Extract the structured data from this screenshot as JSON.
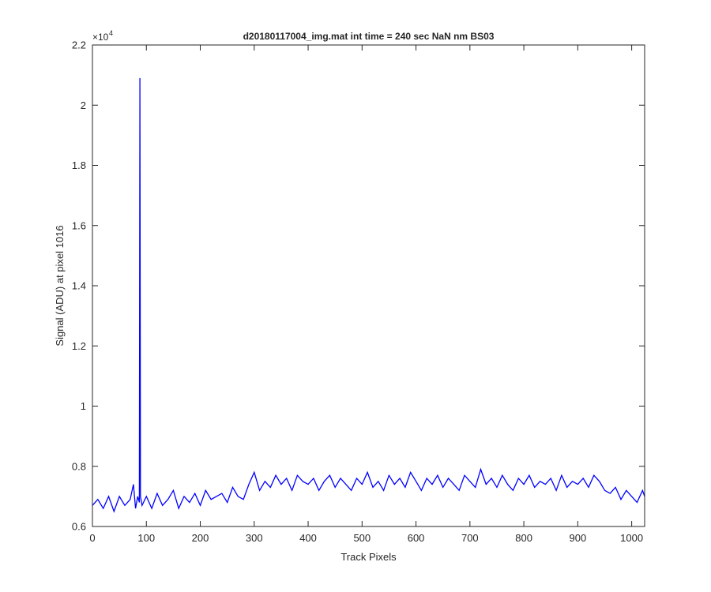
{
  "chart_data": {
    "type": "line",
    "title": "d20180117004_img.mat int time = 240 sec  NaN nm BS03",
    "xlabel": "Track Pixels",
    "ylabel": "Signal (ADU) at pixel 1016",
    "xlim": [
      0,
      1024
    ],
    "ylim": [
      0.6,
      2.2
    ],
    "y_exponent_label": "×10",
    "y_exponent_power": "4",
    "xticks": [
      0,
      100,
      200,
      300,
      400,
      500,
      600,
      700,
      800,
      900,
      1000
    ],
    "xtick_labels": [
      "0",
      "100",
      "200",
      "300",
      "400",
      "500",
      "600",
      "700",
      "800",
      "900",
      "1000"
    ],
    "yticks": [
      0.6,
      0.8,
      1.0,
      1.2,
      1.4,
      1.6,
      1.8,
      2.0,
      2.2
    ],
    "ytick_labels": [
      "0.6",
      "0.8",
      "1",
      "1.2",
      "1.4",
      "1.6",
      "1.8",
      "2",
      "2.2"
    ],
    "grid": false,
    "line_color": "#0000ff",
    "series": [
      {
        "x": [
          0,
          10,
          20,
          30,
          40,
          50,
          60,
          70,
          76,
          80,
          84,
          87,
          88,
          89,
          92,
          100,
          110,
          120,
          130,
          140,
          150,
          160,
          170,
          180,
          190,
          200,
          210,
          220,
          230,
          240,
          250,
          260,
          270,
          280,
          290,
          300,
          310,
          320,
          330,
          340,
          350,
          360,
          370,
          380,
          390,
          400,
          410,
          420,
          430,
          440,
          450,
          460,
          470,
          480,
          490,
          500,
          510,
          520,
          530,
          540,
          550,
          560,
          570,
          580,
          590,
          600,
          610,
          620,
          630,
          640,
          650,
          660,
          670,
          680,
          690,
          700,
          710,
          720,
          730,
          740,
          750,
          760,
          770,
          780,
          790,
          800,
          810,
          820,
          830,
          840,
          850,
          860,
          870,
          880,
          890,
          900,
          910,
          920,
          930,
          940,
          950,
          960,
          970,
          980,
          990,
          1000,
          1010,
          1020,
          1024
        ],
        "y": [
          0.67,
          0.69,
          0.66,
          0.7,
          0.65,
          0.7,
          0.67,
          0.69,
          0.74,
          0.66,
          0.7,
          0.68,
          2.09,
          0.7,
          0.67,
          0.7,
          0.66,
          0.71,
          0.67,
          0.69,
          0.72,
          0.66,
          0.7,
          0.68,
          0.71,
          0.67,
          0.72,
          0.69,
          0.7,
          0.71,
          0.68,
          0.73,
          0.7,
          0.69,
          0.74,
          0.78,
          0.72,
          0.75,
          0.73,
          0.77,
          0.74,
          0.76,
          0.72,
          0.77,
          0.75,
          0.74,
          0.76,
          0.72,
          0.75,
          0.77,
          0.73,
          0.76,
          0.74,
          0.72,
          0.76,
          0.74,
          0.78,
          0.73,
          0.75,
          0.72,
          0.77,
          0.74,
          0.76,
          0.73,
          0.78,
          0.75,
          0.72,
          0.76,
          0.74,
          0.77,
          0.73,
          0.76,
          0.74,
          0.72,
          0.77,
          0.75,
          0.73,
          0.79,
          0.74,
          0.76,
          0.73,
          0.77,
          0.74,
          0.72,
          0.76,
          0.74,
          0.77,
          0.73,
          0.75,
          0.74,
          0.76,
          0.72,
          0.77,
          0.73,
          0.75,
          0.74,
          0.76,
          0.73,
          0.77,
          0.75,
          0.72,
          0.71,
          0.73,
          0.69,
          0.72,
          0.7,
          0.68,
          0.72,
          0.7
        ]
      }
    ]
  }
}
